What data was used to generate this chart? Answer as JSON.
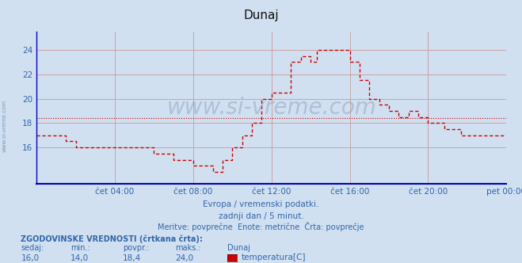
{
  "title": "Dunaj",
  "bg_color": "#d0e0f0",
  "plot_bg_color": "#d0e0f0",
  "line_color": "#cc0000",
  "avg_line_color": "#cc0000",
  "grid_color": "#cc9999",
  "axis_color": "#0000bb",
  "text_color": "#3366aa",
  "xlabel_texts": [
    "čet 04:00",
    "čet 08:00",
    "čet 12:00",
    "čet 16:00",
    "čet 20:00",
    "pet 00:00"
  ],
  "yticks": [
    16,
    18,
    20,
    22,
    24
  ],
  "ylim": [
    13.0,
    25.5
  ],
  "xlim": [
    0,
    288
  ],
  "avg_value": 18.4,
  "subtitle1": "Evropa / vremenski podatki.",
  "subtitle2": "zadnji dan / 5 minut.",
  "subtitle3": "Meritve: povprečne  Enote: metrične  Črta: povprečje",
  "footer_label1": "ZGODOVINSKE VREDNOSTI (črtkana črta):",
  "footer_cols": [
    "sedaj:",
    "min.:",
    "povpr.:",
    "maks.:",
    "Dunaj"
  ],
  "footer_vals": [
    "16,0",
    "14,0",
    "18,4",
    "24,0"
  ],
  "footer_legend": "temperatura[C]",
  "watermark": "www.si-vreme.com"
}
